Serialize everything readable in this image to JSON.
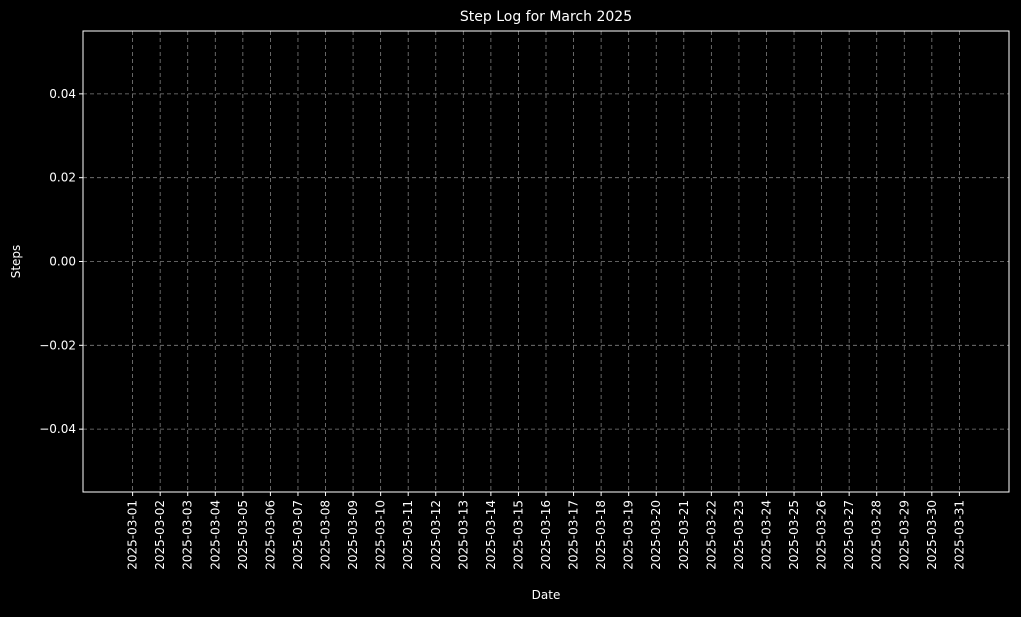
{
  "chart_data": {
    "type": "line",
    "title": "Step Log for March 2025",
    "xlabel": "Date",
    "ylabel": "Steps",
    "categories": [
      "2025-03-01",
      "2025-03-02",
      "2025-03-03",
      "2025-03-04",
      "2025-03-05",
      "2025-03-06",
      "2025-03-07",
      "2025-03-08",
      "2025-03-09",
      "2025-03-10",
      "2025-03-11",
      "2025-03-12",
      "2025-03-13",
      "2025-03-14",
      "2025-03-15",
      "2025-03-16",
      "2025-03-17",
      "2025-03-18",
      "2025-03-19",
      "2025-03-20",
      "2025-03-21",
      "2025-03-22",
      "2025-03-23",
      "2025-03-24",
      "2025-03-25",
      "2025-03-26",
      "2025-03-27",
      "2025-03-28",
      "2025-03-29",
      "2025-03-30",
      "2025-03-31"
    ],
    "series": [],
    "ylim": [
      -0.055,
      0.055
    ],
    "yticks": [
      -0.04,
      -0.02,
      0.0,
      0.02,
      0.04
    ],
    "ytick_labels": [
      "−0.04",
      "−0.02",
      "0.00",
      "0.02",
      "0.04"
    ],
    "x_tick_rotation": "vertical",
    "grid": true,
    "grid_style": "dashed",
    "legend": "none",
    "colors": {
      "background": "#000000",
      "axes": "#ffffff",
      "text": "#ffffff",
      "grid": "#808080"
    }
  }
}
